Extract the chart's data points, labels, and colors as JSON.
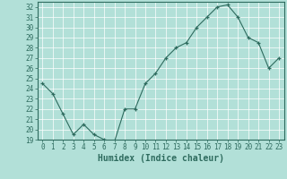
{
  "x": [
    0,
    1,
    2,
    3,
    4,
    5,
    6,
    7,
    8,
    9,
    10,
    11,
    12,
    13,
    14,
    15,
    16,
    17,
    18,
    19,
    20,
    21,
    22,
    23
  ],
  "y": [
    24.5,
    23.5,
    21.5,
    19.5,
    20.5,
    19.5,
    19.0,
    18.8,
    22.0,
    22.0,
    24.5,
    25.5,
    27.0,
    28.0,
    28.5,
    30.0,
    31.0,
    32.0,
    32.2,
    31.0,
    29.0,
    28.5,
    26.0,
    27.0
  ],
  "xlim": [
    -0.5,
    23.5
  ],
  "ylim": [
    19,
    32.5
  ],
  "yticks": [
    19,
    20,
    21,
    22,
    23,
    24,
    25,
    26,
    27,
    28,
    29,
    30,
    31,
    32
  ],
  "xticks": [
    0,
    1,
    2,
    3,
    4,
    5,
    6,
    7,
    8,
    9,
    10,
    11,
    12,
    13,
    14,
    15,
    16,
    17,
    18,
    19,
    20,
    21,
    22,
    23
  ],
  "xlabel": "Humidex (Indice chaleur)",
  "line_color": "#2e6b5e",
  "marker": "+",
  "bg_color": "#b2e0d8",
  "grid_color": "#ffffff",
  "text_color": "#2e6b5e",
  "font_size": 5.5,
  "xlabel_fontsize": 7
}
